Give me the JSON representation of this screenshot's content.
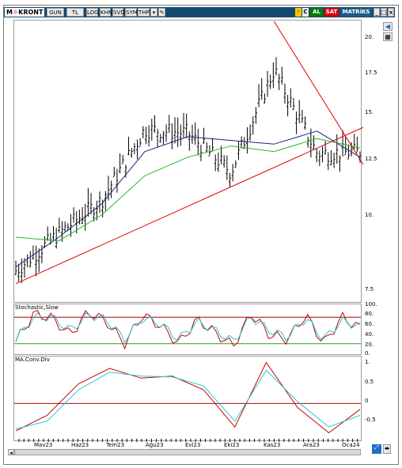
{
  "toolbar": {
    "logo": "M",
    "symbol": "KRONT",
    "buttons": [
      "GUN",
      "TL",
      "LOG",
      "KHN",
      "SVD",
      "SYM",
      "THP"
    ],
    "right_badges": [
      "C",
      "AL",
      "SAT",
      "MATRiKS"
    ],
    "colors": {
      "bar": "#13486f",
      "al": "#007a00",
      "sat": "#d80000"
    }
  },
  "main_panel": {
    "y_ticks": [
      "20.",
      "17.5",
      "15.",
      "12.5",
      "10.",
      "7.5"
    ]
  },
  "stochastic_panel": {
    "title": "Stochastic,Slow",
    "y_ticks": [
      "100.",
      "80.",
      "60.",
      "40.",
      "20.",
      "0."
    ]
  },
  "macd_panel": {
    "title": "MA.Conv.Div",
    "y_ticks": [
      "1.",
      "0.5",
      "0",
      "-0.5"
    ]
  },
  "x_axis": {
    "labels": [
      "Mav23",
      "Haz23",
      "Tem23",
      "Ağu23",
      "Evl23",
      "Eki23",
      "Kas23",
      "Ara23",
      "Oca24"
    ]
  },
  "chart_data": [
    {
      "type": "candlestick",
      "x": [
        "Mav23",
        "Haz23",
        "Tem23",
        "Ağu23",
        "Evl23",
        "Eki23",
        "Kas23",
        "Ara23",
        "Oca24"
      ],
      "close": [
        8.2,
        10.2,
        12.0,
        15.8,
        15.6,
        13.5,
        19.0,
        14.5,
        14.6
      ],
      "series": [
        {
          "name": "MA short",
          "color": "#20207a",
          "values": [
            8.4,
            10.0,
            11.8,
            14.6,
            15.4,
            15.2,
            15.0,
            15.7,
            14.3
          ]
        },
        {
          "name": "MA long",
          "color": "#22bb22",
          "values": [
            10.0,
            9.8,
            11.2,
            13.3,
            14.3,
            14.9,
            14.6,
            15.3,
            14.8
          ]
        }
      ],
      "trendlines": [
        {
          "from": [
            "Mav23",
            7.5
          ],
          "to": [
            "Oca24",
            15.9
          ],
          "color": "#e00000"
        },
        {
          "from": [
            "Kas23",
            21.6
          ],
          "to": [
            "Oca24",
            13.9
          ],
          "color": "#e00000"
        }
      ],
      "ylim": [
        6.6,
        21.6
      ]
    },
    {
      "type": "line",
      "title": "Stochastic,Slow",
      "ylim": [
        0,
        100
      ],
      "reference_lines": [
        80,
        20
      ],
      "series": [
        {
          "name": "%K",
          "color": "#d00000",
          "values": [
            25,
            88,
            78,
            40,
            92,
            70,
            20,
            85,
            60,
            20,
            75,
            45,
            15,
            88,
            40,
            30,
            85,
            20,
            80,
            55
          ]
        },
        {
          "name": "%D",
          "color": "#20c8d8",
          "values": [
            30,
            80,
            80,
            50,
            85,
            75,
            30,
            78,
            65,
            30,
            70,
            50,
            25,
            80,
            50,
            35,
            78,
            30,
            72,
            58
          ]
        }
      ]
    },
    {
      "type": "line",
      "title": "MA.Conv.Div",
      "ylim": [
        -0.8,
        1.1
      ],
      "reference_lines": [
        0
      ],
      "series": [
        {
          "name": "MACD",
          "color": "#d00000",
          "values": [
            -0.7,
            -0.3,
            0.5,
            0.9,
            0.65,
            0.7,
            0.35,
            -0.6,
            1.05,
            -0.1,
            -0.75,
            -0.15
          ]
        },
        {
          "name": "Signal",
          "color": "#20c8d8",
          "values": [
            -0.65,
            -0.45,
            0.35,
            0.8,
            0.7,
            0.68,
            0.45,
            -0.45,
            0.85,
            0.05,
            -0.6,
            -0.3
          ]
        }
      ]
    }
  ]
}
